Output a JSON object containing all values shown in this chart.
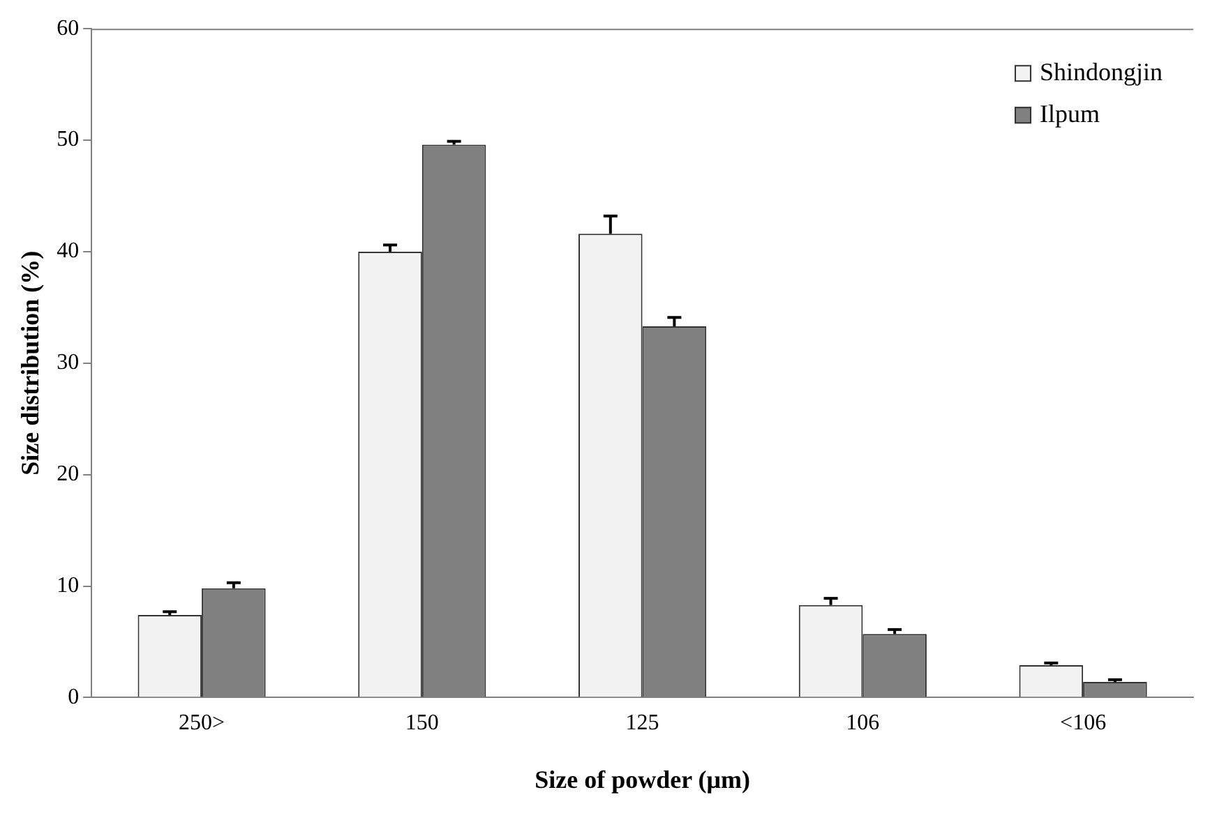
{
  "chart_data": {
    "type": "bar",
    "xlabel": "Size of powder (μm)",
    "ylabel": "Size distribution (%)",
    "categories": [
      "250>",
      "150",
      "125",
      "106",
      "<106"
    ],
    "series": [
      {
        "name": "Shindongjin",
        "color": "#f2f2f2",
        "values": [
          7.4,
          40.0,
          41.6,
          8.3,
          2.9
        ],
        "errors": [
          [
            7.4,
            7.7
          ],
          [
            40.0,
            40.6
          ],
          [
            41.6,
            43.2
          ],
          [
            8.3,
            8.9
          ],
          [
            2.9,
            3.1
          ]
        ]
      },
      {
        "name": "Ilpum",
        "color": "#808080",
        "values": [
          9.8,
          49.6,
          33.3,
          5.7,
          1.4
        ],
        "errors": [
          [
            9.8,
            10.3
          ],
          [
            49.6,
            49.9
          ],
          [
            33.3,
            34.1
          ],
          [
            5.7,
            6.1
          ],
          [
            1.4,
            1.6
          ]
        ]
      }
    ],
    "ylim": [
      0,
      60
    ],
    "yticks": [
      0,
      10,
      20,
      30,
      40,
      50,
      60
    ],
    "grid": false,
    "legend": "top right"
  }
}
